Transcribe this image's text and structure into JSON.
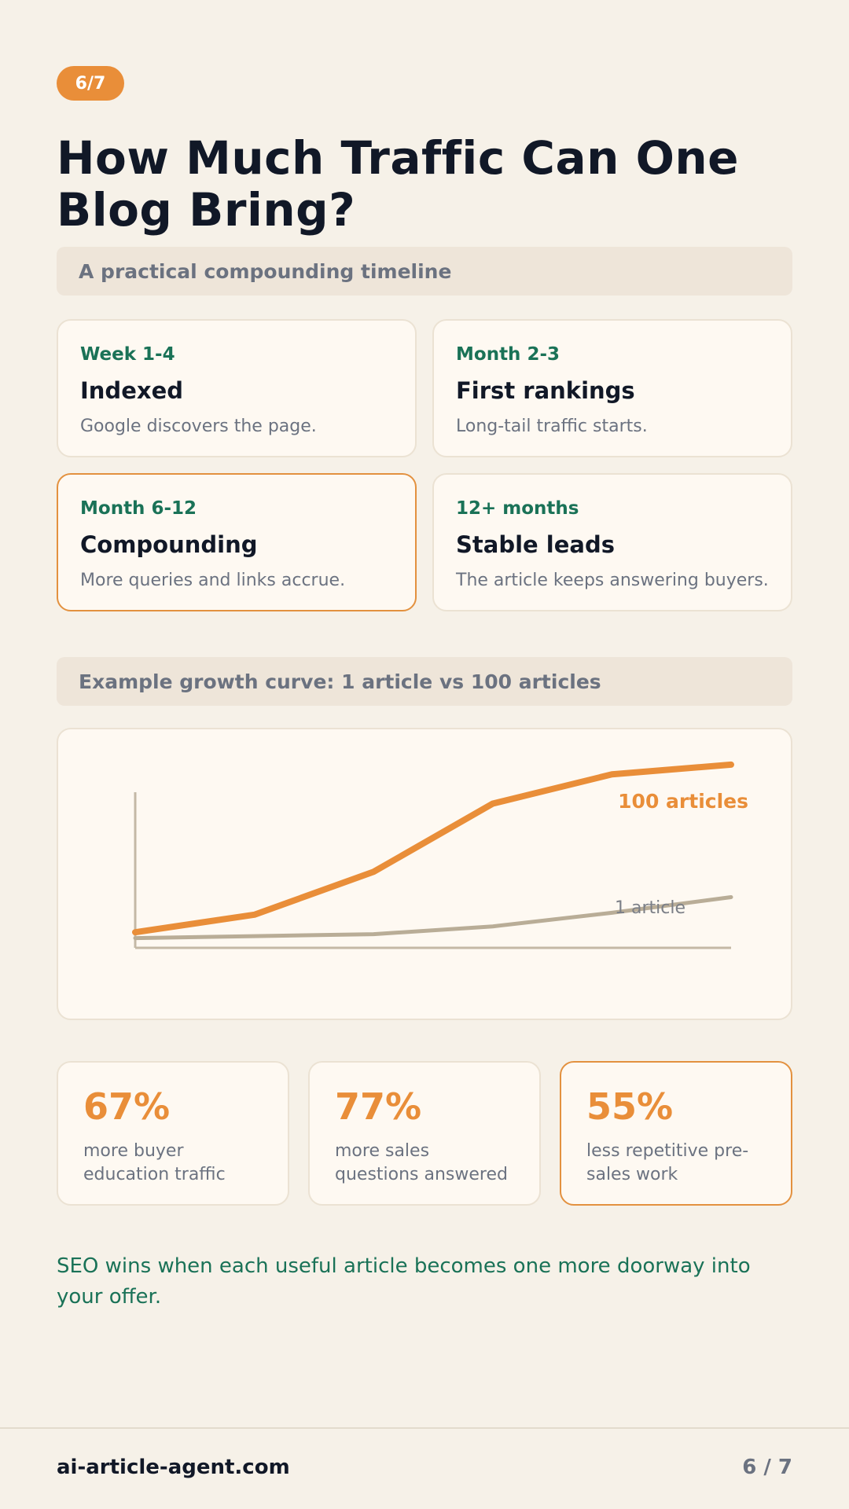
{
  "badge": "6/7",
  "title": "How Much Traffic Can One Blog Bring?",
  "timeline_header": "A practical compounding timeline",
  "timeline": [
    {
      "phase": "Week 1-4",
      "heading": "Indexed",
      "desc": "Google discovers the page."
    },
    {
      "phase": "Month 2-3",
      "heading": "First rankings",
      "desc": "Long-tail traffic starts."
    },
    {
      "phase": "Month 6-12",
      "heading": "Compounding",
      "desc": "More queries and links accrue."
    },
    {
      "phase": "12+ months",
      "heading": "Stable leads",
      "desc": "The article keeps answering buyers."
    }
  ],
  "chart_header": "Example growth curve: 1 article vs 100 articles",
  "chart_data": {
    "type": "line",
    "title": "",
    "xlabel": "",
    "ylabel": "",
    "x": [
      0,
      1,
      2,
      3,
      4,
      5
    ],
    "series": [
      {
        "name": "100 articles",
        "color": "#e98e39",
        "values": [
          8,
          17,
          39,
          74,
          89,
          94
        ]
      },
      {
        "name": "1 article",
        "color": "#b9ad97",
        "values": [
          5,
          6,
          7,
          11,
          18,
          26
        ]
      }
    ],
    "ylim": [
      0,
      100
    ],
    "grid": false,
    "legend": "inline-labels"
  },
  "stats": [
    {
      "value": "67%",
      "label": "more buyer education traffic"
    },
    {
      "value": "77%",
      "label": "more sales questions answered"
    },
    {
      "value": "55%",
      "label": "less repetitive pre-sales work"
    }
  ],
  "tagline": "SEO wins when each useful article becomes one more doorway into your offer.",
  "footer": {
    "site": "ai-article-agent.com",
    "page": "6 / 7"
  },
  "colors": {
    "accent": "#e98e39",
    "green": "#1a7257",
    "background": "#f6f1e8"
  }
}
